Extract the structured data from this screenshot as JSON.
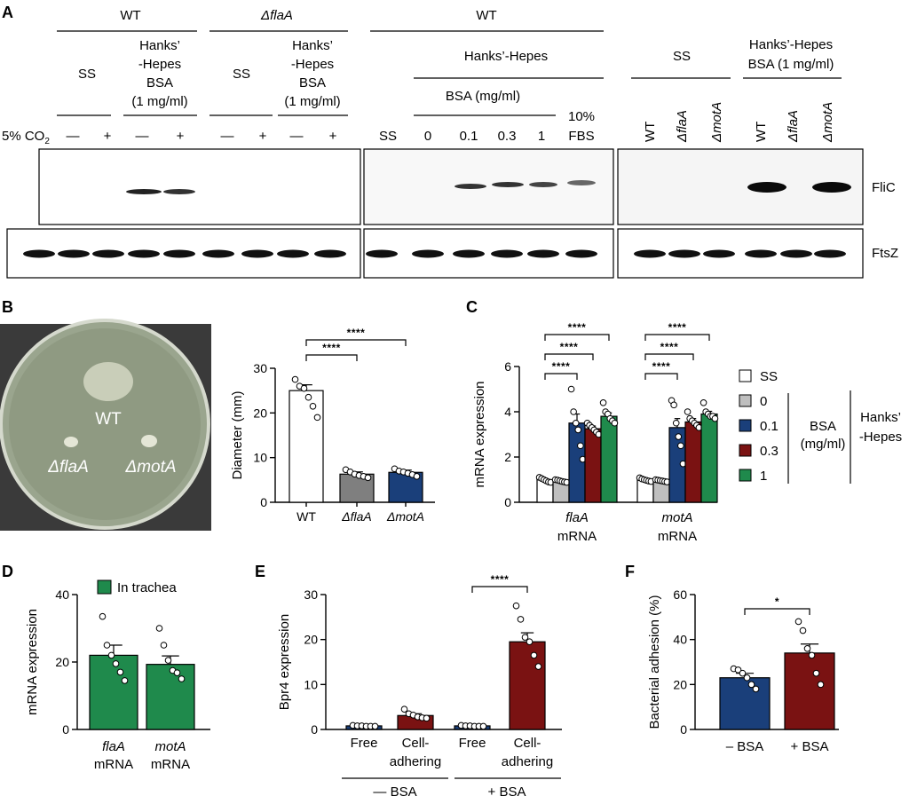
{
  "panels": {
    "A": "A",
    "B": "B",
    "C": "C",
    "D": "D",
    "E": "E",
    "F": "F"
  },
  "panelA": {
    "wt": "WT",
    "dflaA": "ΔflaA",
    "wt2": "WT",
    "ss": "SS",
    "hanks": [
      "Hanks’",
      "-Hepes",
      "BSA",
      "(1 mg/ml)"
    ],
    "hanks_hepes": "Hanks’-Hepes",
    "bsa_mgml": "BSA (mg/ml)",
    "co2": "5% CO",
    "co2_sub": "2",
    "signs": [
      "—",
      "+",
      "—",
      "+",
      "—",
      "+",
      "—",
      "+"
    ],
    "mid_lanes": [
      "SS",
      "0",
      "0.1",
      "0.3",
      "1",
      "10%",
      "FBS"
    ],
    "right_ss": "SS",
    "right_hh": [
      "Hanks’-Hepes",
      "BSA (1 mg/ml)"
    ],
    "right_lanes": [
      "WT",
      "ΔflaA",
      "ΔmotA",
      "WT",
      "ΔflaA",
      "ΔmotA"
    ],
    "blot_flic": "FliC",
    "blot_ftsz": "FtsZ"
  },
  "panelB": {
    "plate_labels": [
      "WT",
      "ΔflaA",
      "ΔmotA"
    ],
    "chart_data": {
      "type": "bar",
      "categories": [
        "WT",
        "ΔflaA",
        "ΔmotA"
      ],
      "values": [
        25,
        6.3,
        6.7
      ],
      "errors": [
        1.3,
        0.5,
        0.5
      ],
      "points": [
        [
          27.5,
          26,
          25.5,
          23.5,
          21.5,
          19
        ],
        [
          7.3,
          6.8,
          6.3,
          6,
          5.8,
          5.5
        ],
        [
          7.5,
          7,
          6.8,
          6.5,
          6.2,
          5.8
        ]
      ],
      "colors": [
        "#ffffff",
        "#7f7f7f",
        "#1a3f7a"
      ],
      "ylabel": "Diameter (mm)",
      "ylim": [
        0,
        30
      ],
      "yticks": [
        0,
        10,
        20,
        30
      ],
      "sig": [
        "****",
        "****"
      ]
    }
  },
  "panelC": {
    "chart_data": {
      "type": "bar",
      "groups": [
        "flaA",
        "motA"
      ],
      "group_sub": "mRNA",
      "series": [
        {
          "name": "SS",
          "color": "#ffffff",
          "values": [
            1.0,
            1.0
          ],
          "errors": [
            0.05,
            0.05
          ]
        },
        {
          "name": "0",
          "color": "#bfbfbf",
          "values": [
            0.95,
            0.95
          ],
          "errors": [
            0.05,
            0.05
          ]
        },
        {
          "name": "0.1",
          "color": "#1a3f7a",
          "values": [
            3.5,
            3.3
          ],
          "errors": [
            0.4,
            0.4
          ]
        },
        {
          "name": "0.3",
          "color": "#7a1212",
          "values": [
            3.25,
            3.55
          ],
          "errors": [
            0.12,
            0.15
          ]
        },
        {
          "name": "1",
          "color": "#1f8a4c",
          "values": [
            3.8,
            3.9
          ],
          "errors": [
            0.15,
            0.12
          ]
        }
      ],
      "points": [
        [
          [
            1.1,
            1.05,
            1.0,
            0.95,
            0.9,
            0.88
          ],
          [
            1.0,
            0.98,
            0.95,
            0.92,
            0.9,
            0.88
          ],
          [
            5.0,
            4.0,
            3.5,
            3.2,
            2.5,
            1.9
          ],
          [
            3.5,
            3.4,
            3.3,
            3.2,
            3.1,
            3.0
          ],
          [
            4.4,
            4.0,
            3.9,
            3.7,
            3.6,
            3.5
          ]
        ],
        [
          [
            1.08,
            1.03,
            1.0,
            0.97,
            0.94,
            0.92
          ],
          [
            1.0,
            0.98,
            0.96,
            0.94,
            0.92,
            0.9
          ],
          [
            4.5,
            4.3,
            3.5,
            2.9,
            2.5,
            1.7
          ],
          [
            4.0,
            3.7,
            3.6,
            3.5,
            3.4,
            3.3
          ],
          [
            4.4,
            4.0,
            3.9,
            3.8,
            3.8,
            3.7
          ]
        ]
      ],
      "ylabel": "mRNA expression",
      "ylim": [
        0,
        6
      ],
      "yticks": [
        0,
        2,
        4,
        6
      ],
      "sig": [
        "****",
        "****",
        "****"
      ],
      "legend_title": [
        "BSA",
        "(mg/ml)"
      ],
      "legend_group": [
        "Hanks’",
        "-Hepes"
      ]
    }
  },
  "panelD": {
    "chart_data": {
      "type": "bar",
      "categories": [
        "flaA",
        "motA"
      ],
      "cat_sub": "mRNA",
      "values": [
        22,
        19.3
      ],
      "errors": [
        3,
        2.5
      ],
      "points": [
        [
          33.5,
          25,
          22,
          19.5,
          17,
          14.5
        ],
        [
          30,
          25,
          20.5,
          17.5,
          16.8,
          15
        ]
      ],
      "color": "#1f8a4c",
      "ylabel": "mRNA expression",
      "ylim": [
        0,
        40
      ],
      "yticks": [
        0,
        20,
        40
      ],
      "legend": "In trachea"
    }
  },
  "panelE": {
    "chart_data": {
      "type": "bar",
      "categories": [
        "Free",
        "Cell-\nadhering",
        "Free",
        "Cell-\nadhering"
      ],
      "values": [
        0.8,
        3.1,
        0.8,
        19.5
      ],
      "errors": [
        0.1,
        0.4,
        0.1,
        2
      ],
      "points": [
        [
          0.9,
          0.8,
          0.8,
          0.7,
          0.7,
          0.7
        ],
        [
          4.5,
          3.5,
          3.2,
          2.8,
          2.6,
          2.5
        ],
        [
          0.9,
          0.8,
          0.8,
          0.7,
          0.7,
          0.7
        ],
        [
          27.5,
          24.5,
          20.5,
          19.5,
          16.5,
          14
        ]
      ],
      "colors": [
        "#1a3f7a",
        "#7a1212",
        "#1a3f7a",
        "#7a1212"
      ],
      "ylabel": "Bpr4 expression",
      "ylim": [
        0,
        30
      ],
      "yticks": [
        0,
        10,
        20,
        30
      ],
      "groups": [
        "— BSA",
        "+ BSA"
      ],
      "sig": [
        "****"
      ]
    }
  },
  "panelF": {
    "chart_data": {
      "type": "bar",
      "categories": [
        "– BSA",
        "+ BSA"
      ],
      "values": [
        23,
        34
      ],
      "errors": [
        2,
        4
      ],
      "points": [
        [
          27,
          26.5,
          25,
          23,
          20,
          18
        ],
        [
          48,
          44,
          36,
          33,
          25,
          20
        ]
      ],
      "colors": [
        "#1a3f7a",
        "#7a1212"
      ],
      "ylabel": "Bacterial adhesion (%)",
      "ylim": [
        0,
        60
      ],
      "yticks": [
        0,
        20,
        40,
        60
      ],
      "sig": [
        "*"
      ]
    }
  }
}
